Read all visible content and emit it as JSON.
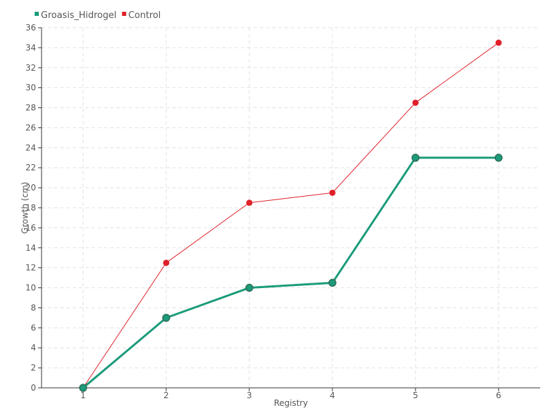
{
  "chart_data": {
    "type": "line",
    "title": "",
    "xlabel": "Registry",
    "ylabel": "Growth (cm)",
    "categories": [
      "1",
      "2",
      "3",
      "4",
      "5",
      "6"
    ],
    "ylim": [
      0,
      36
    ],
    "yticks": [
      0,
      2,
      4,
      6,
      8,
      10,
      12,
      14,
      16,
      18,
      20,
      22,
      24,
      26,
      28,
      30,
      32,
      34,
      36
    ],
    "grid": true,
    "legend_position": "top-left",
    "series": [
      {
        "name": "Groasis_Hidrogel",
        "values": [
          0,
          7,
          10,
          10.5,
          23,
          23
        ],
        "color": "#1a9b7a"
      },
      {
        "name": "Control",
        "values": [
          0,
          12.5,
          18.5,
          19.5,
          28.5,
          34.5
        ],
        "color": "#e0202a"
      }
    ]
  },
  "colors": {
    "grid": "#e2e2e2",
    "axis": "#333333",
    "marker_outline_green": "#2e6e58"
  }
}
